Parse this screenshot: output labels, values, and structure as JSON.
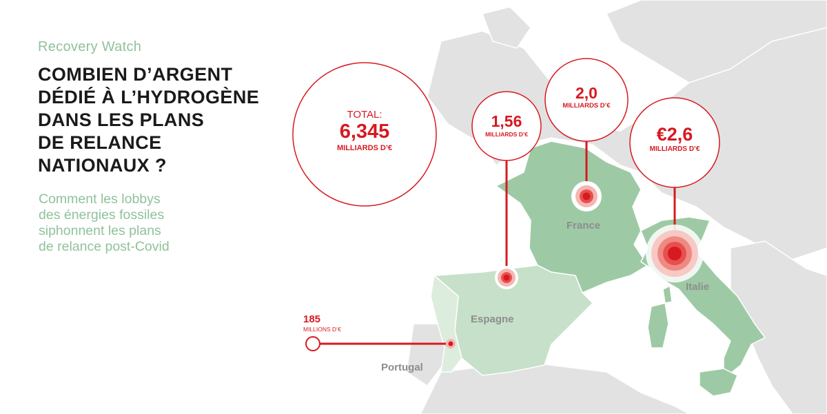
{
  "header": {
    "kicker": "Recovery Watch",
    "title_lines": [
      "COMBIEN D’ARGENT",
      "DÉDIÉ À L’HYDROGÈNE",
      "DANS LES PLANS",
      "DE RELANCE",
      "NATIONAUX ?"
    ],
    "subtitle_lines": [
      "Comment les lobbys",
      "des énergies fossiles",
      "siphonnent les plans",
      "de relance post-Covid"
    ]
  },
  "total": {
    "label": "TOTAL:",
    "value": "6,345",
    "unit": "MILLIARDS D’€"
  },
  "countries": [
    {
      "name": "Espagne",
      "value": "1,56",
      "unit": "MILLIARDS D’€"
    },
    {
      "name": "France",
      "value": "2,0",
      "unit": "MILLIARDS D’€"
    },
    {
      "name": "Italie",
      "value": "€2,6",
      "unit": "MILLIARDS D’€"
    },
    {
      "name": "Portugal",
      "value": "185",
      "unit": "MILLIONS D’€"
    }
  ],
  "colors": {
    "accent": "#d71920",
    "highlight_land": "#9dcaa5",
    "light_land": "#c7e0c9",
    "lightest_land": "#dcecdd",
    "other_land": "#e1e1e1",
    "borders": "#ffffff"
  }
}
